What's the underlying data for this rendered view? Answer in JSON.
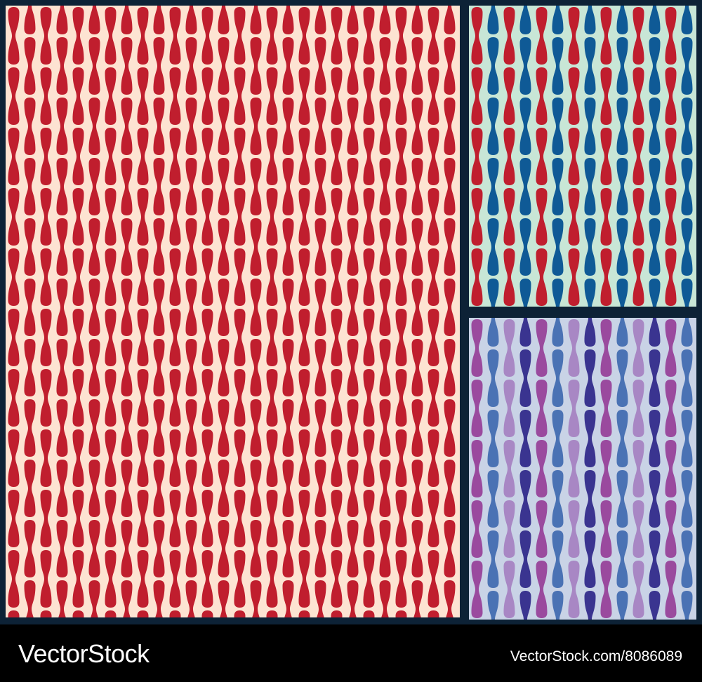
{
  "watermark": {
    "brand": "VectorStock",
    "id": "VectorStock.com/8086089"
  }
}
